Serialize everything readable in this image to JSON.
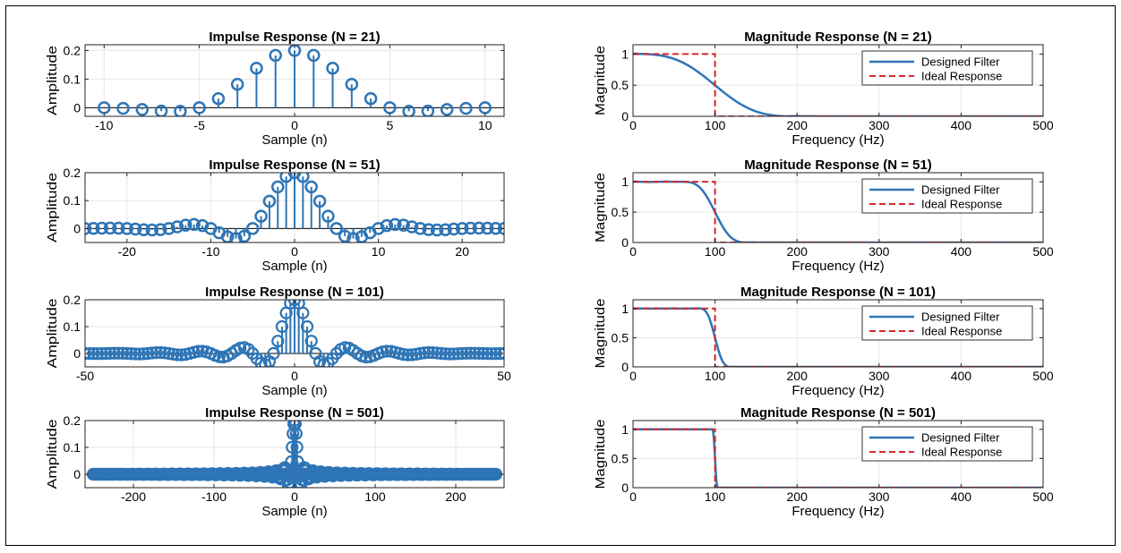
{
  "colors": {
    "designed": "#2e75b6",
    "ideal": "#d62728",
    "grid": "#e6e6e6",
    "axis": "#222222"
  },
  "chart_data": [
    {
      "type": "stem",
      "id": "imp21",
      "title": "Impulse Response (N = 21)",
      "xlabel": "Sample (n)",
      "ylabel": "Amplitude",
      "N": 21,
      "fc_norm": 0.2,
      "xlim": [
        -11,
        11
      ],
      "ylim": [
        -0.03,
        0.22
      ],
      "xticks": [
        -10,
        -5,
        0,
        5,
        10
      ],
      "yticks": [
        0,
        0.1,
        0.2
      ],
      "ytick_labels": [
        "0",
        "0.1",
        "0.2"
      ],
      "grid": true
    },
    {
      "type": "line",
      "id": "mag21",
      "title": "Magnitude Response (N = 21)",
      "xlabel": "Frequency (Hz)",
      "ylabel": "Magnitude",
      "N": 21,
      "cutoff_hz": 100,
      "xlim": [
        0,
        500
      ],
      "ylim": [
        0,
        1.15
      ],
      "xticks": [
        0,
        100,
        200,
        300,
        400,
        500
      ],
      "yticks": [
        0,
        0.5,
        1
      ],
      "ytick_labels": [
        "0",
        "0.5",
        "1"
      ],
      "grid": true,
      "series": [
        {
          "name": "Designed Filter",
          "style": "solid"
        },
        {
          "name": "Ideal Response",
          "style": "dashed"
        }
      ],
      "legend": "top-right"
    },
    {
      "type": "stem",
      "id": "imp51",
      "title": "Impulse Response (N = 51)",
      "xlabel": "Sample (n)",
      "ylabel": "Amplitude",
      "N": 51,
      "fc_norm": 0.2,
      "xlim": [
        -25,
        25
      ],
      "ylim": [
        -0.05,
        0.2
      ],
      "xticks": [
        -20,
        -10,
        0,
        10,
        20
      ],
      "yticks": [
        0,
        0.1,
        0.2
      ],
      "ytick_labels": [
        "0",
        "0.1",
        "0.2"
      ],
      "grid": true
    },
    {
      "type": "line",
      "id": "mag51",
      "title": "Magnitude Response (N = 51)",
      "xlabel": "Frequency (Hz)",
      "ylabel": "Magnitude",
      "N": 51,
      "cutoff_hz": 100,
      "xlim": [
        0,
        500
      ],
      "ylim": [
        0,
        1.15
      ],
      "xticks": [
        0,
        100,
        200,
        300,
        400,
        500
      ],
      "yticks": [
        0,
        0.5,
        1
      ],
      "ytick_labels": [
        "0",
        "0.5",
        "1"
      ],
      "grid": true,
      "series": [
        {
          "name": "Designed Filter",
          "style": "solid"
        },
        {
          "name": "Ideal Response",
          "style": "dashed"
        }
      ],
      "legend": "top-right"
    },
    {
      "type": "stem",
      "id": "imp101",
      "title": "Impulse Response (N = 101)",
      "xlabel": "Sample (n)",
      "ylabel": "Amplitude",
      "N": 101,
      "fc_norm": 0.2,
      "xlim": [
        -50,
        50
      ],
      "ylim": [
        -0.05,
        0.2
      ],
      "xticks": [
        -50,
        0,
        50
      ],
      "yticks": [
        0,
        0.1,
        0.2
      ],
      "ytick_labels": [
        "0",
        "0.1",
        "0.2"
      ],
      "grid": true
    },
    {
      "type": "line",
      "id": "mag101",
      "title": "Magnitude Response (N = 101)",
      "xlabel": "Frequency (Hz)",
      "ylabel": "Magnitude",
      "N": 101,
      "cutoff_hz": 100,
      "xlim": [
        0,
        500
      ],
      "ylim": [
        0,
        1.15
      ],
      "xticks": [
        0,
        100,
        200,
        300,
        400,
        500
      ],
      "yticks": [
        0,
        0.5,
        1
      ],
      "ytick_labels": [
        "0",
        "0.5",
        "1"
      ],
      "grid": true,
      "series": [
        {
          "name": "Designed Filter",
          "style": "solid"
        },
        {
          "name": "Ideal Response",
          "style": "dashed"
        }
      ],
      "legend": "top-right"
    },
    {
      "type": "stem",
      "id": "imp501",
      "title": "Impulse Response (N = 501)",
      "xlabel": "Sample (n)",
      "ylabel": "Amplitude",
      "N": 501,
      "fc_norm": 0.2,
      "xlim": [
        -260,
        260
      ],
      "ylim": [
        -0.05,
        0.2
      ],
      "xticks": [
        -200,
        -100,
        0,
        100,
        200
      ],
      "yticks": [
        0,
        0.1,
        0.2
      ],
      "ytick_labels": [
        "0",
        "0.1",
        "0.2"
      ],
      "grid": true
    },
    {
      "type": "line",
      "id": "mag501",
      "title": "Magnitude Response (N = 501)",
      "xlabel": "Frequency (Hz)",
      "ylabel": "Magnitude",
      "N": 501,
      "cutoff_hz": 100,
      "xlim": [
        0,
        500
      ],
      "ylim": [
        0,
        1.15
      ],
      "xticks": [
        0,
        100,
        200,
        300,
        400,
        500
      ],
      "yticks": [
        0,
        0.5,
        1
      ],
      "ytick_labels": [
        "0",
        "0.5",
        "1"
      ],
      "grid": true,
      "series": [
        {
          "name": "Designed Filter",
          "style": "solid"
        },
        {
          "name": "Ideal Response",
          "style": "dashed"
        }
      ],
      "legend": "top-right"
    }
  ]
}
